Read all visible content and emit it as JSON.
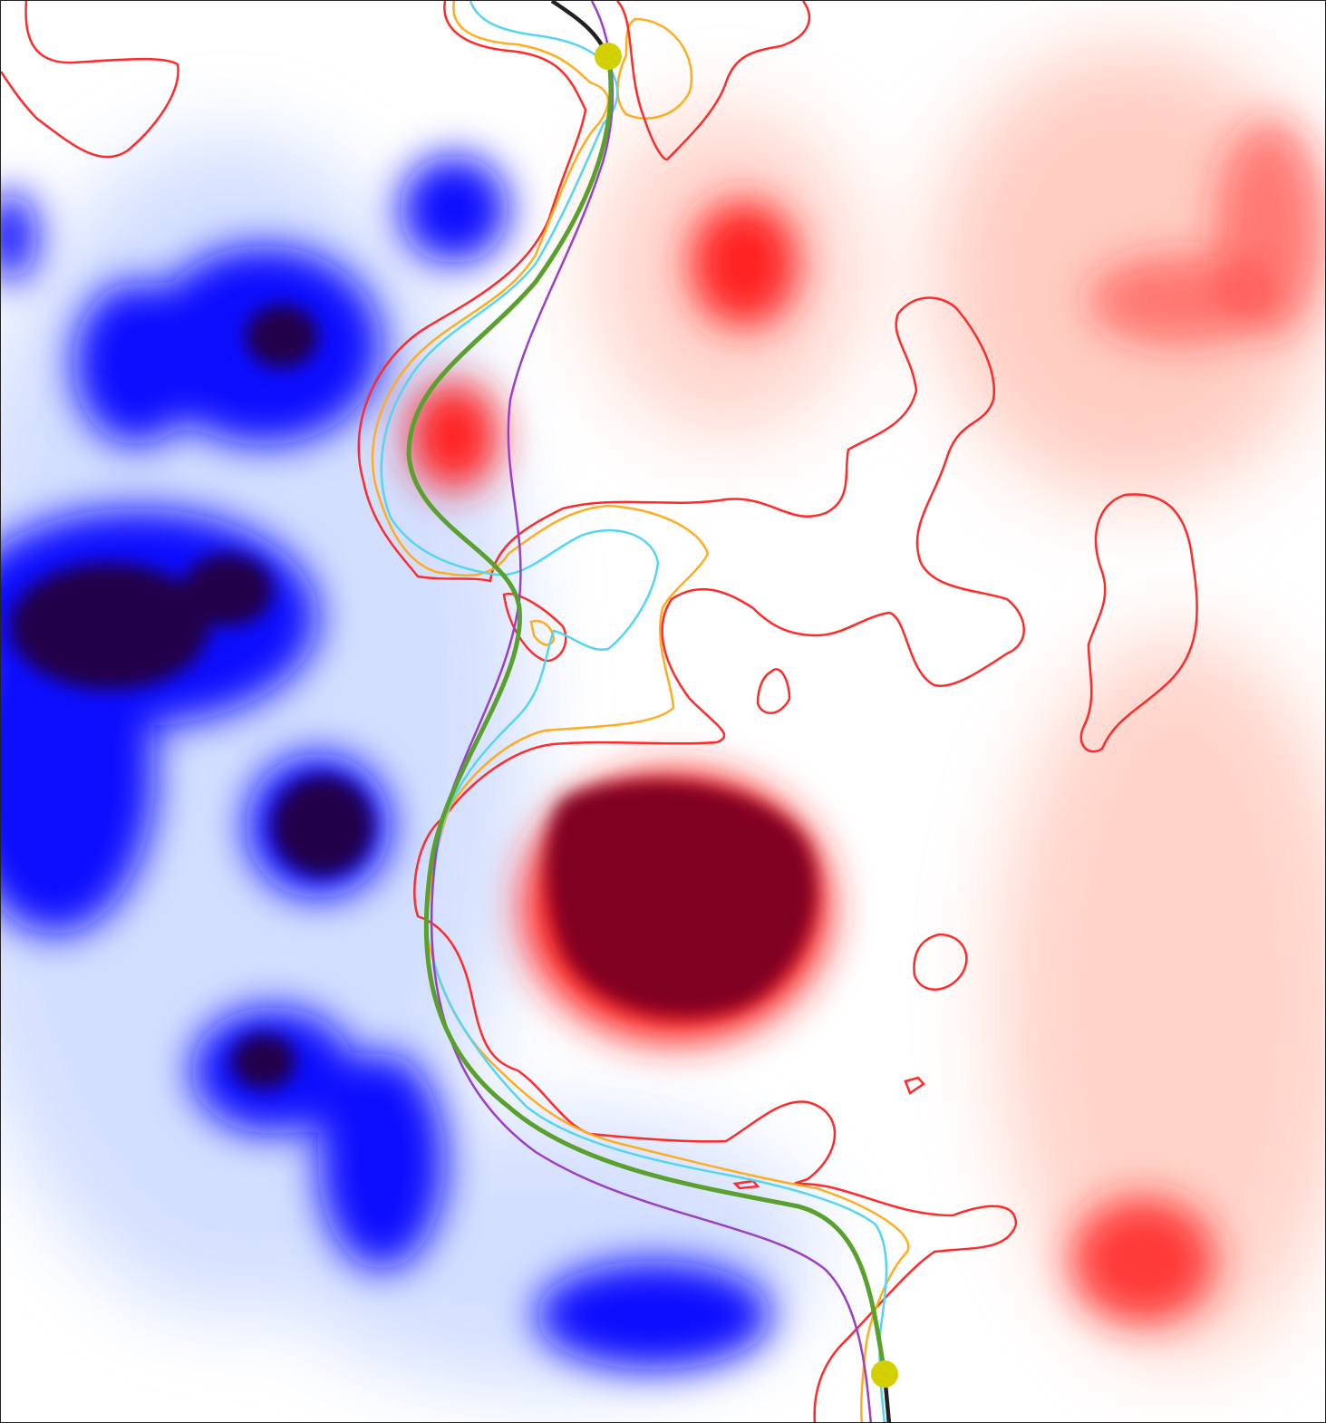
{
  "colors": {
    "negative_strong": "#0000ff",
    "negative_extreme": "#22004a",
    "positive_strong": "#ff1010",
    "positive_extreme": "#800020",
    "contour_red": "#ff2a2a",
    "contour_orange": "#ffad1f",
    "contour_cyan": "#55d5f0",
    "path_green": "#5aa02c",
    "path_purple": "#9b3fc4",
    "path_black": "#222222",
    "endpoint_marker": "#d4cf00"
  },
  "markers": [
    {
      "name": "start-point"
    },
    {
      "name": "end-point"
    }
  ]
}
